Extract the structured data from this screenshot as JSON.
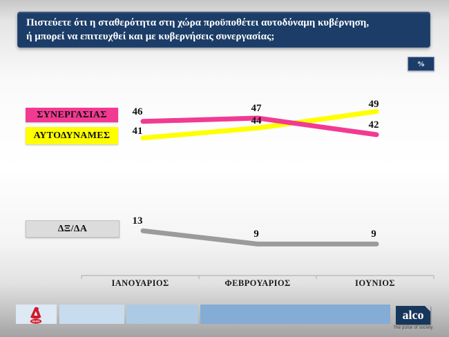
{
  "header": {
    "question_line1": "Πιστεύετε ότι η σταθερότητα στη χώρα προϋποθέτει αυτοδύναμη κυβέρνηση,",
    "question_line2": "ή μπορεί να επιτευχθεί και με  κυβερνήσεις συνεργασίας;",
    "unit_badge": "%"
  },
  "colors": {
    "header_bg": "#1c3d68",
    "pink": "#f23a92",
    "yellow": "#ffff00",
    "gray_line": "#9b9b9b",
    "legend_gray_bg": "#dcdcdc",
    "strip_blues": [
      "#dde9f5",
      "#c7dcee",
      "#adcae4",
      "#84acd5"
    ],
    "alco_navy": "#16365c",
    "alpha_red": "#cf1b2b"
  },
  "legend": {
    "items": [
      {
        "label": "ΣΥΝΕΡΓΑΣΙΑΣ",
        "bg": "#f23a92"
      },
      {
        "label": "ΑΥΤΟΔΥΝΑΜΕΣ",
        "bg": "#ffff00"
      },
      {
        "label": "ΔΞ/ΔΑ",
        "bg": "#dcdcdc"
      }
    ]
  },
  "chart_data": {
    "type": "line",
    "title": "Πιστεύετε ότι η σταθερότητα στη χώρα προϋποθέτει αυτοδύναμη κυβέρνηση, ή μπορεί να επιτευχθεί και με κυβερνήσεις συνεργασίας;",
    "unit": "%",
    "categories": [
      "ΙΑΝΟΥΑΡΙΟΣ",
      "ΦΕΒΡΟΥΑΡΙΟΣ",
      "ΙΟΥΝΙΟΣ"
    ],
    "series": [
      {
        "name": "ΣΥΝΕΡΓΑΣΙΑΣ",
        "color": "#f23a92",
        "values": [
          46,
          47,
          42
        ]
      },
      {
        "name": "ΑΥΤΟΔΥΝΑΜΕΣ",
        "color": "#ffff00",
        "values": [
          41,
          44,
          49
        ]
      },
      {
        "name": "ΔΞ/ΔΑ",
        "color": "#9b9b9b",
        "values": [
          13,
          9,
          9
        ]
      }
    ],
    "ylim": [
      0,
      62
    ],
    "grid": false,
    "legend_position": "left",
    "data_labels": true
  },
  "footer": {
    "alpha_news_label": "NEWS",
    "alco_logo_text": "alco",
    "alco_tagline": "The pulse of society"
  }
}
